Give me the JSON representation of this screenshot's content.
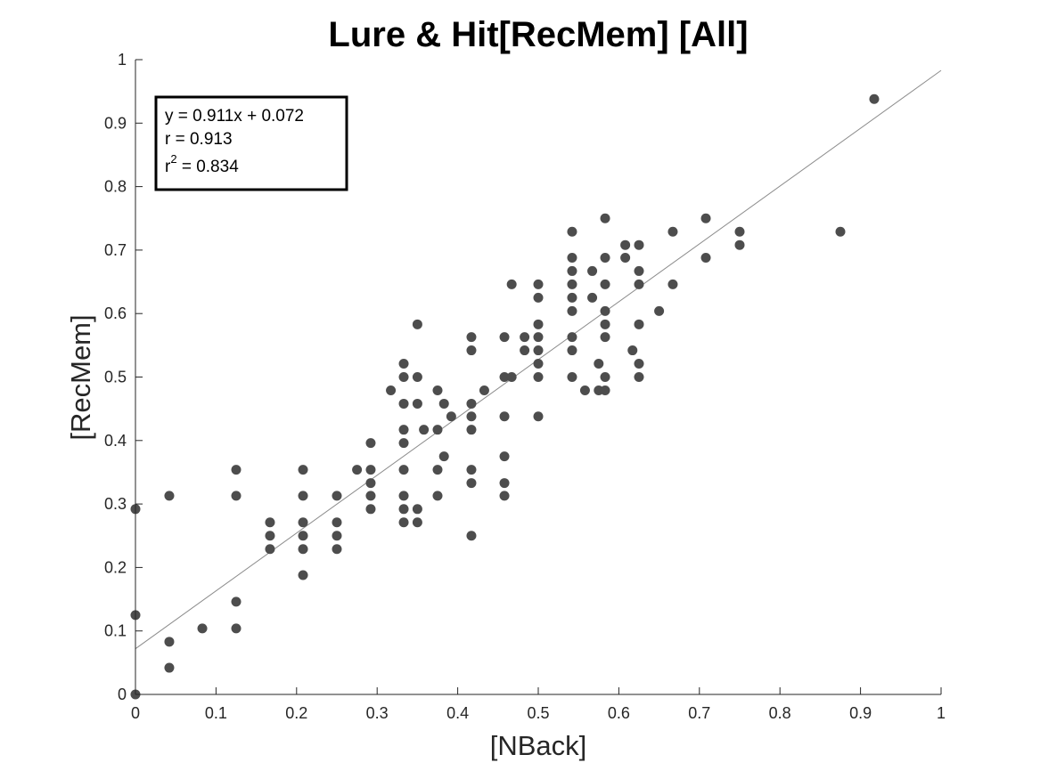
{
  "chart_data": {
    "type": "scatter",
    "title": "Lure & Hit[RecMem] [All]",
    "xlabel": "[NBack]",
    "ylabel": "[RecMem]",
    "xlim": [
      0,
      1
    ],
    "ylim": [
      0,
      1
    ],
    "xticks": [
      "0",
      "0.1",
      "0.2",
      "0.3",
      "0.4",
      "0.5",
      "0.6",
      "0.7",
      "0.8",
      "0.9",
      "1"
    ],
    "yticks": [
      "0",
      "0.1",
      "0.2",
      "0.3",
      "0.4",
      "0.5",
      "0.6",
      "0.7",
      "0.8",
      "0.9",
      "1"
    ],
    "grid": false,
    "marker_color": "#4d4d4d",
    "fit_line_color": "#8c8c8c",
    "fit_line": {
      "slope": 0.911,
      "intercept": 0.072
    },
    "annotation": {
      "equation": "y = 0.911x + 0.072",
      "r": "r = 0.913",
      "r2_base": "r",
      "r2_exp": "2",
      "r2_value": " = 0.834"
    },
    "points": [
      [
        0,
        0
      ],
      [
        0,
        0.125
      ],
      [
        0,
        0.292
      ],
      [
        0.042,
        0.042
      ],
      [
        0.042,
        0.083
      ],
      [
        0.042,
        0.313
      ],
      [
        0.083,
        0.104
      ],
      [
        0.125,
        0.104
      ],
      [
        0.125,
        0.146
      ],
      [
        0.125,
        0.313
      ],
      [
        0.125,
        0.354
      ],
      [
        0.167,
        0.229
      ],
      [
        0.167,
        0.25
      ],
      [
        0.167,
        0.271
      ],
      [
        0.208,
        0.188
      ],
      [
        0.208,
        0.229
      ],
      [
        0.208,
        0.25
      ],
      [
        0.208,
        0.271
      ],
      [
        0.208,
        0.313
      ],
      [
        0.208,
        0.354
      ],
      [
        0.25,
        0.229
      ],
      [
        0.25,
        0.25
      ],
      [
        0.25,
        0.271
      ],
      [
        0.25,
        0.313
      ],
      [
        0.275,
        0.354
      ],
      [
        0.292,
        0.292
      ],
      [
        0.292,
        0.313
      ],
      [
        0.292,
        0.333
      ],
      [
        0.292,
        0.354
      ],
      [
        0.292,
        0.396
      ],
      [
        0.317,
        0.479
      ],
      [
        0.333,
        0.271
      ],
      [
        0.333,
        0.292
      ],
      [
        0.333,
        0.313
      ],
      [
        0.333,
        0.354
      ],
      [
        0.333,
        0.396
      ],
      [
        0.333,
        0.417
      ],
      [
        0.333,
        0.458
      ],
      [
        0.333,
        0.5
      ],
      [
        0.333,
        0.521
      ],
      [
        0.35,
        0.271
      ],
      [
        0.35,
        0.292
      ],
      [
        0.35,
        0.458
      ],
      [
        0.35,
        0.5
      ],
      [
        0.35,
        0.583
      ],
      [
        0.358,
        0.417
      ],
      [
        0.375,
        0.313
      ],
      [
        0.375,
        0.354
      ],
      [
        0.375,
        0.417
      ],
      [
        0.375,
        0.479
      ],
      [
        0.383,
        0.375
      ],
      [
        0.383,
        0.458
      ],
      [
        0.392,
        0.438
      ],
      [
        0.417,
        0.25
      ],
      [
        0.417,
        0.333
      ],
      [
        0.417,
        0.354
      ],
      [
        0.417,
        0.417
      ],
      [
        0.417,
        0.438
      ],
      [
        0.417,
        0.458
      ],
      [
        0.417,
        0.542
      ],
      [
        0.417,
        0.563
      ],
      [
        0.433,
        0.479
      ],
      [
        0.458,
        0.313
      ],
      [
        0.458,
        0.333
      ],
      [
        0.458,
        0.375
      ],
      [
        0.458,
        0.438
      ],
      [
        0.458,
        0.5
      ],
      [
        0.458,
        0.563
      ],
      [
        0.467,
        0.5
      ],
      [
        0.467,
        0.646
      ],
      [
        0.483,
        0.542
      ],
      [
        0.483,
        0.563
      ],
      [
        0.5,
        0.438
      ],
      [
        0.5,
        0.5
      ],
      [
        0.5,
        0.521
      ],
      [
        0.5,
        0.542
      ],
      [
        0.5,
        0.563
      ],
      [
        0.5,
        0.583
      ],
      [
        0.5,
        0.625
      ],
      [
        0.5,
        0.646
      ],
      [
        0.542,
        0.5
      ],
      [
        0.542,
        0.542
      ],
      [
        0.542,
        0.563
      ],
      [
        0.542,
        0.604
      ],
      [
        0.542,
        0.625
      ],
      [
        0.542,
        0.646
      ],
      [
        0.542,
        0.667
      ],
      [
        0.542,
        0.688
      ],
      [
        0.542,
        0.729
      ],
      [
        0.558,
        0.479
      ],
      [
        0.567,
        0.625
      ],
      [
        0.567,
        0.667
      ],
      [
        0.575,
        0.479
      ],
      [
        0.575,
        0.521
      ],
      [
        0.583,
        0.479
      ],
      [
        0.583,
        0.5
      ],
      [
        0.583,
        0.563
      ],
      [
        0.583,
        0.583
      ],
      [
        0.583,
        0.604
      ],
      [
        0.583,
        0.646
      ],
      [
        0.583,
        0.688
      ],
      [
        0.583,
        0.75
      ],
      [
        0.608,
        0.688
      ],
      [
        0.608,
        0.708
      ],
      [
        0.617,
        0.542
      ],
      [
        0.625,
        0.5
      ],
      [
        0.625,
        0.521
      ],
      [
        0.625,
        0.583
      ],
      [
        0.625,
        0.646
      ],
      [
        0.625,
        0.667
      ],
      [
        0.625,
        0.708
      ],
      [
        0.65,
        0.604
      ],
      [
        0.667,
        0.646
      ],
      [
        0.667,
        0.729
      ],
      [
        0.708,
        0.688
      ],
      [
        0.708,
        0.75
      ],
      [
        0.75,
        0.708
      ],
      [
        0.75,
        0.729
      ],
      [
        0.875,
        0.729
      ],
      [
        0.917,
        0.938
      ]
    ]
  }
}
